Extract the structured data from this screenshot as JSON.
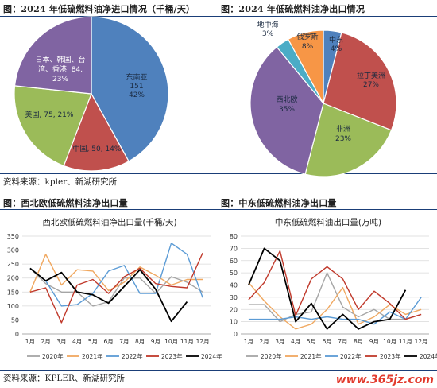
{
  "figures": {
    "f1_title": "图：2024 年低硫燃料油净进口情况（千桶/天）",
    "f2_title": "图：2024 年低硫燃料油净出口情况",
    "f3_title": "图：西北欧低硫燃料油净出口量",
    "f4_title": "图：中东低硫燃料油净出口量",
    "source_top": "资料来源：kpler、新湖研究所",
    "source_bottom": "资料来源：KPLER、新湖研究所",
    "watermark": "www.365jz.com"
  },
  "colors": {
    "rule": "#1a3e78",
    "watermark": "#e23b2e"
  },
  "chart_data": [
    {
      "type": "pie",
      "title": "",
      "slices": [
        {
          "label": "东南亚",
          "value": 151,
          "pct": "42%",
          "color": "#4f81bd"
        },
        {
          "label": "中国",
          "value": 50,
          "pct": "14%",
          "color": "#c0504d"
        },
        {
          "label": "美国",
          "value": 75,
          "pct": "21%",
          "color": "#9bbb59"
        },
        {
          "label": "日本、韩国、台湾、香港",
          "value": 84,
          "pct": "23%",
          "color": "#8064a2"
        }
      ],
      "labels": {
        "sea_name": "东南亚",
        "sea_val": "151",
        "sea_pct": "42%",
        "cn": "中国, 50, 14%",
        "us": "美国, 75, 21%",
        "jk_l1": "日本、韩国、台",
        "jk_l2": "湾、香港, 84,",
        "jk_l3": "23%"
      }
    },
    {
      "type": "pie",
      "title": "",
      "slices": [
        {
          "label": "中东",
          "pct": 4,
          "color": "#4f81bd"
        },
        {
          "label": "拉丁美洲",
          "pct": 27,
          "color": "#c0504d"
        },
        {
          "label": "非洲",
          "pct": 23,
          "color": "#9bbb59"
        },
        {
          "label": "西北欧",
          "pct": 35,
          "color": "#8064a2"
        },
        {
          "label": "地中海",
          "pct": 3,
          "color": "#4bacc6"
        },
        {
          "label": "俄罗斯",
          "pct": 8,
          "color": "#f79646"
        }
      ],
      "labels": {
        "me_name": "中东",
        "me_pct": "4%",
        "la_name": "拉丁美洲",
        "la_pct": "27%",
        "af_name": "非洲",
        "af_pct": "23%",
        "nwe_name": "西北欧",
        "nwe_pct": "35%",
        "med_name": "地中海",
        "med_pct": "3%",
        "ru_name": "俄罗斯",
        "ru_pct": "8%"
      }
    },
    {
      "type": "line",
      "title": "西北欧低硫燃料油净出口量(千桶/天)",
      "categories": [
        "1月",
        "2月",
        "3月",
        "4月",
        "5月",
        "6月",
        "7月",
        "8月",
        "9月",
        "10月",
        "11月",
        "12月"
      ],
      "ylim": [
        0,
        350
      ],
      "yticks": [
        "0",
        "50",
        "100",
        "150",
        "200",
        "250",
        "300",
        "350"
      ],
      "series": [
        {
          "name": "2020年",
          "color": "#a5a5a5",
          "values": [
            235,
            180,
            150,
            150,
            100,
            115,
            200,
            200,
            145,
            205,
            185,
            150
          ]
        },
        {
          "name": "2021年",
          "color": "#f0a860",
          "values": [
            150,
            285,
            175,
            230,
            225,
            155,
            185,
            240,
            210,
            175,
            195,
            195
          ]
        },
        {
          "name": "2022年",
          "color": "#5b9bd5",
          "values": [
            235,
            190,
            100,
            105,
            145,
            225,
            245,
            145,
            145,
            325,
            285,
            130
          ]
        },
        {
          "name": "2023年",
          "color": "#c0392b",
          "values": [
            150,
            165,
            40,
            175,
            195,
            145,
            205,
            235,
            180,
            170,
            165,
            290
          ]
        },
        {
          "name": "2024年",
          "color": "#000000",
          "values": [
            235,
            190,
            220,
            150,
            140,
            110,
            170,
            230,
            160,
            45,
            115,
            null
          ]
        }
      ]
    },
    {
      "type": "line",
      "title": "中东低硫燃料油出口量(万吨)",
      "categories": [
        "1月",
        "2月",
        "3月",
        "4月",
        "5月",
        "6月",
        "7月",
        "8月",
        "9月",
        "10月",
        "11月",
        "12月"
      ],
      "ylim": [
        0,
        80
      ],
      "yticks": [
        "0",
        "10",
        "20",
        "30",
        "40",
        "50",
        "60",
        "70",
        "80"
      ],
      "series": [
        {
          "name": "2020年",
          "color": "#a5a5a5",
          "values": [
            24,
            24,
            10,
            16,
            18,
            50,
            22,
            14,
            20,
            12,
            12,
            16
          ]
        },
        {
          "name": "2021年",
          "color": "#f0a860",
          "values": [
            42,
            27,
            14,
            4,
            8,
            20,
            38,
            8,
            14,
            24,
            16,
            20
          ]
        },
        {
          "name": "2022年",
          "color": "#5b9bd5",
          "values": [
            12,
            12,
            12,
            14,
            12,
            14,
            12,
            12,
            8,
            18,
            12,
            30
          ]
        },
        {
          "name": "2023年",
          "color": "#c0392b",
          "values": [
            28,
            42,
            68,
            15,
            45,
            55,
            45,
            20,
            35,
            25,
            12,
            16
          ]
        },
        {
          "name": "2024年",
          "color": "#000000",
          "values": [
            40,
            70,
            60,
            10,
            25,
            4,
            16,
            4,
            10,
            12,
            36,
            null
          ]
        }
      ]
    }
  ]
}
